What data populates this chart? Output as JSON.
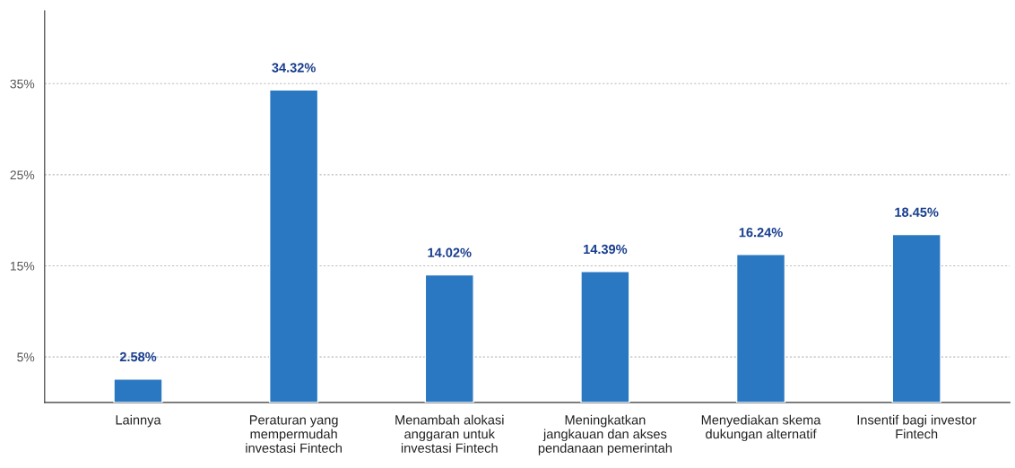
{
  "chart_data": {
    "type": "bar",
    "categories": [
      "Lainnya",
      "Peraturan yang\nmempermudah\ninvestasi Fintech",
      "Menambah alokasi\nanggaran untuk\ninvestasi Fintech",
      "Meningkatkan\njangkauan dan akses\npendanaan pemerintah",
      "Menyediakan skema\ndukungan alternatif",
      "Insentif bagi investor\nFintech"
    ],
    "values": [
      2.58,
      34.32,
      14.02,
      14.39,
      16.24,
      18.45
    ],
    "value_labels": [
      "2.58%",
      "34.32%",
      "14.02%",
      "14.39%",
      "16.24%",
      "18.45%"
    ],
    "color": "#2a78c2",
    "ylim": [
      0,
      43
    ],
    "yticks": [
      {
        "value": 5,
        "label": "5%"
      },
      {
        "value": 15,
        "label": "15%"
      },
      {
        "value": 25,
        "label": "25%"
      },
      {
        "value": 35,
        "label": "35%"
      }
    ],
    "grid": "y"
  }
}
